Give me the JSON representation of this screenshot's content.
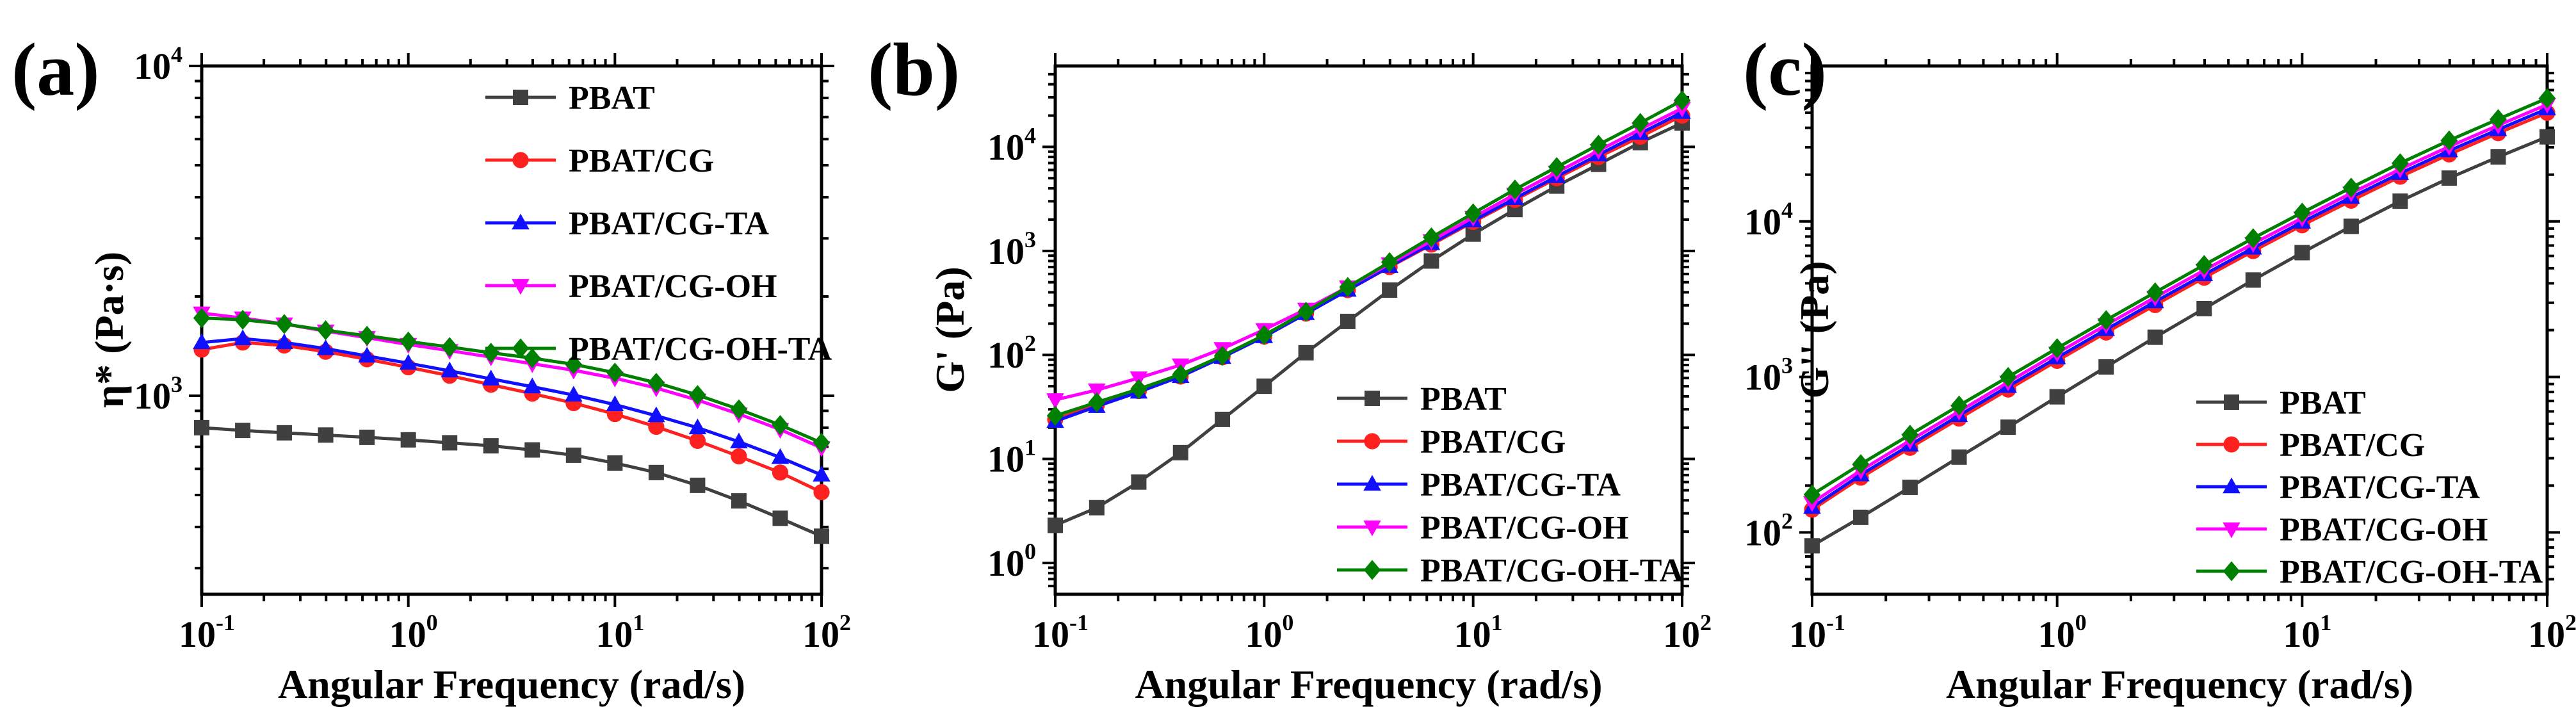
{
  "chart_data": [
    {
      "type": "line",
      "panel_label": "(a)",
      "title": "",
      "xlabel": "Angular Frequency (rad/s)",
      "ylabel": "η* (Pa·s)",
      "xscale": "log",
      "yscale": "log",
      "xlim": [
        0.1,
        100
      ],
      "ylim": [
        250,
        10000
      ],
      "x_ticks": [
        {
          "base": "10",
          "exp": "-1",
          "value": 0.1
        },
        {
          "base": "10",
          "exp": "0",
          "value": 1
        },
        {
          "base": "10",
          "exp": "1",
          "value": 10
        },
        {
          "base": "10",
          "exp": "2",
          "value": 100
        }
      ],
      "y_ticks": [
        {
          "base": "10",
          "exp": "3",
          "value": 1000
        },
        {
          "base": "10",
          "exp": "4",
          "value": 10000
        }
      ],
      "legend_position": "top-right",
      "x": [
        0.1,
        0.158,
        0.251,
        0.398,
        0.631,
        1.0,
        1.585,
        2.512,
        3.981,
        6.31,
        10.0,
        15.85,
        25.12,
        39.81,
        63.1,
        100.0
      ],
      "series": [
        {
          "name": "PBAT",
          "color": "#404040",
          "marker": "square",
          "values": [
            800,
            785,
            772,
            760,
            748,
            735,
            720,
            705,
            685,
            660,
            625,
            585,
            535,
            480,
            425,
            375
          ]
        },
        {
          "name": "PBAT/CG",
          "color": "#ff2020",
          "marker": "circle",
          "values": [
            1380,
            1450,
            1420,
            1360,
            1290,
            1220,
            1150,
            1080,
            1015,
            950,
            880,
            805,
            730,
            655,
            585,
            510
          ]
        },
        {
          "name": "PBAT/CG-TA",
          "color": "#1010ff",
          "marker": "triangle-up",
          "values": [
            1450,
            1490,
            1450,
            1390,
            1320,
            1255,
            1190,
            1125,
            1065,
            1005,
            940,
            870,
            800,
            725,
            650,
            575
          ]
        },
        {
          "name": "PBAT/CG-OH",
          "color": "#ff00ff",
          "marker": "triangle-down",
          "values": [
            1780,
            1720,
            1650,
            1570,
            1500,
            1430,
            1370,
            1310,
            1250,
            1195,
            1130,
            1055,
            970,
            880,
            790,
            695
          ]
        },
        {
          "name": "PBAT/CG-OH-TA",
          "color": "#008000",
          "marker": "diamond",
          "values": [
            1720,
            1700,
            1650,
            1580,
            1520,
            1460,
            1405,
            1350,
            1300,
            1245,
            1175,
            1095,
            1005,
            910,
            815,
            720
          ]
        }
      ]
    },
    {
      "type": "line",
      "panel_label": "(b)",
      "title": "",
      "xlabel": "Angular Frequency (rad/s)",
      "ylabel": "G' (Pa)",
      "xscale": "log",
      "yscale": "log",
      "xlim": [
        0.1,
        100
      ],
      "ylim": [
        0.5,
        60000
      ],
      "x_ticks": [
        {
          "base": "10",
          "exp": "-1",
          "value": 0.1
        },
        {
          "base": "10",
          "exp": "0",
          "value": 1
        },
        {
          "base": "10",
          "exp": "1",
          "value": 10
        },
        {
          "base": "10",
          "exp": "2",
          "value": 100
        }
      ],
      "y_ticks": [
        {
          "base": "10",
          "exp": "0",
          "value": 1
        },
        {
          "base": "10",
          "exp": "1",
          "value": 10
        },
        {
          "base": "10",
          "exp": "2",
          "value": 100
        },
        {
          "base": "10",
          "exp": "3",
          "value": 1000
        },
        {
          "base": "10",
          "exp": "4",
          "value": 10000
        }
      ],
      "legend_position": "bottom-right",
      "x": [
        0.1,
        0.158,
        0.251,
        0.398,
        0.631,
        1.0,
        1.585,
        2.512,
        3.981,
        6.31,
        10.0,
        15.85,
        25.12,
        39.81,
        63.1,
        100.0
      ],
      "series": [
        {
          "name": "PBAT",
          "color": "#404040",
          "marker": "square",
          "values": [
            2.3,
            3.4,
            6.0,
            11.5,
            24,
            50,
            105,
            210,
            420,
            800,
            1450,
            2500,
            4200,
            6800,
            11000,
            17000
          ]
        },
        {
          "name": "PBAT/CG",
          "color": "#ff2020",
          "marker": "circle",
          "values": [
            24,
            33,
            45,
            62,
            95,
            150,
            250,
            420,
            700,
            1150,
            1900,
            3100,
            5000,
            8000,
            12500,
            20000
          ]
        },
        {
          "name": "PBAT/CG-TA",
          "color": "#1010ff",
          "marker": "triangle-up",
          "values": [
            23,
            32,
            44,
            62,
            95,
            150,
            250,
            420,
            710,
            1180,
            1950,
            3200,
            5200,
            8400,
            13500,
            21500
          ]
        },
        {
          "name": "PBAT/CG-OH",
          "color": "#ff00ff",
          "marker": "triangle-down",
          "values": [
            37,
            46,
            60,
            80,
            115,
            175,
            275,
            450,
            750,
            1250,
            2100,
            3500,
            5700,
            9200,
            14800,
            23500
          ]
        },
        {
          "name": "PBAT/CG-OH-TA",
          "color": "#008000",
          "marker": "diamond",
          "values": [
            26,
            35,
            47,
            65,
            98,
            155,
            260,
            450,
            780,
            1350,
            2300,
            3900,
            6400,
            10500,
            17000,
            28000
          ]
        }
      ]
    },
    {
      "type": "line",
      "panel_label": "(c)",
      "title": "",
      "xlabel": "Angular Frequency (rad/s)",
      "ylabel": "G'' (Pa)",
      "xscale": "log",
      "yscale": "log",
      "xlim": [
        0.1,
        100
      ],
      "ylim": [
        40,
        100000
      ],
      "x_ticks": [
        {
          "base": "10",
          "exp": "-1",
          "value": 0.1
        },
        {
          "base": "10",
          "exp": "0",
          "value": 1
        },
        {
          "base": "10",
          "exp": "1",
          "value": 10
        },
        {
          "base": "10",
          "exp": "2",
          "value": 100
        }
      ],
      "y_ticks": [
        {
          "base": "10",
          "exp": "2",
          "value": 100
        },
        {
          "base": "10",
          "exp": "3",
          "value": 1000
        },
        {
          "base": "10",
          "exp": "4",
          "value": 10000
        }
      ],
      "legend_position": "bottom-right",
      "x": [
        0.1,
        0.158,
        0.251,
        0.398,
        0.631,
        1.0,
        1.585,
        2.512,
        3.981,
        6.31,
        10.0,
        15.85,
        25.12,
        39.81,
        63.1,
        100.0
      ],
      "series": [
        {
          "name": "PBAT",
          "color": "#404040",
          "marker": "square",
          "values": [
            82,
            125,
            195,
            305,
            475,
            745,
            1160,
            1800,
            2750,
            4200,
            6300,
            9300,
            13500,
            19000,
            26000,
            35000
          ]
        },
        {
          "name": "PBAT/CG",
          "color": "#ff2020",
          "marker": "circle",
          "values": [
            140,
            225,
            350,
            540,
            830,
            1270,
            1930,
            2900,
            4350,
            6450,
            9450,
            13600,
            19400,
            27000,
            37000,
            50000
          ]
        },
        {
          "name": "PBAT/CG-TA",
          "color": "#1010ff",
          "marker": "triangle-up",
          "values": [
            145,
            235,
            365,
            565,
            870,
            1330,
            2020,
            3050,
            4550,
            6750,
            9900,
            14300,
            20400,
            28500,
            39000,
            53000
          ]
        },
        {
          "name": "PBAT/CG-OH",
          "color": "#ff00ff",
          "marker": "triangle-down",
          "values": [
            155,
            250,
            390,
            600,
            925,
            1420,
            2160,
            3250,
            4850,
            7200,
            10500,
            15200,
            21700,
            30300,
            41500,
            56500
          ]
        },
        {
          "name": "PBAT/CG-OH-TA",
          "color": "#008000",
          "marker": "diamond",
          "values": [
            175,
            275,
            425,
            655,
            1000,
            1530,
            2320,
            3500,
            5250,
            7800,
            11400,
            16500,
            23700,
            33200,
            45500,
            62000
          ]
        }
      ]
    }
  ]
}
